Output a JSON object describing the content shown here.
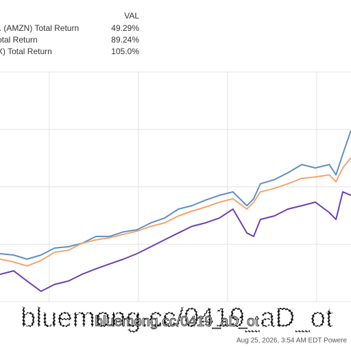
{
  "chart_data": {
    "type": "line",
    "legend_header": "VAL",
    "x": [
      11.2,
      15.0,
      18.8,
      22.7,
      26.5,
      30.4,
      34.2,
      38.1,
      41.9,
      45.8,
      49.6,
      53.5,
      57.3,
      61.2,
      65.0,
      68.8,
      72.7,
      76.5,
      80.4,
      82.3,
      84.2,
      88.1,
      91.9,
      95.8,
      99.6,
      103.5,
      105.4,
      107.3,
      109.6
    ],
    "xlim": [
      11.2,
      109.6
    ],
    "xticks": [
      25,
      50,
      75,
      100
    ],
    "ylim": [
      0,
      100
    ],
    "yticks": [
      0,
      25,
      50,
      75,
      100
    ],
    "grid": true,
    "series": [
      {
        "name": "l. (AMZN) Total Return",
        "value_label": "49.29%",
        "color": "#5b8ec9",
        "values": [
          20.9,
          20.3,
          18.5,
          20.3,
          23.3,
          23.9,
          25.4,
          28.4,
          28.4,
          30.4,
          31.3,
          34.3,
          36.4,
          40.3,
          41.8,
          44.2,
          46.3,
          47.8,
          41.8,
          44.8,
          51.3,
          53.1,
          56.1,
          59.7,
          58.2,
          59.7,
          55.2,
          64.2,
          74.6
        ]
      },
      {
        "name": "otal Return",
        "value_label": "89.24%",
        "color": "#f4a46a",
        "values": [
          18.5,
          17.3,
          15.5,
          17.9,
          21.5,
          22.4,
          25.4,
          26.9,
          27.8,
          29.3,
          30.7,
          32.8,
          34.3,
          37.3,
          39.4,
          41.2,
          43.3,
          44.8,
          40.3,
          43.3,
          47.8,
          49.3,
          51.3,
          53.7,
          54.3,
          55.2,
          52.2,
          58.2,
          62.7
        ]
      },
      {
        "name": "X) Total Return",
        "value_label": "105.0%",
        "color": "#6a3fb5",
        "values": [
          11.9,
          13.4,
          9.0,
          4.5,
          7.5,
          9.0,
          11.9,
          14.3,
          16.4,
          18.5,
          20.9,
          23.9,
          26.9,
          29.9,
          32.8,
          34.3,
          36.4,
          40.3,
          29.9,
          28.4,
          35.8,
          37.3,
          40.3,
          41.8,
          43.3,
          38.8,
          35.8,
          47.8,
          46.3
        ]
      }
    ]
  },
  "watermark": "bluemong.cc/0419_aD_ot",
  "footer": "Aug 25, 2026, 3:54 AM EDT Powere"
}
